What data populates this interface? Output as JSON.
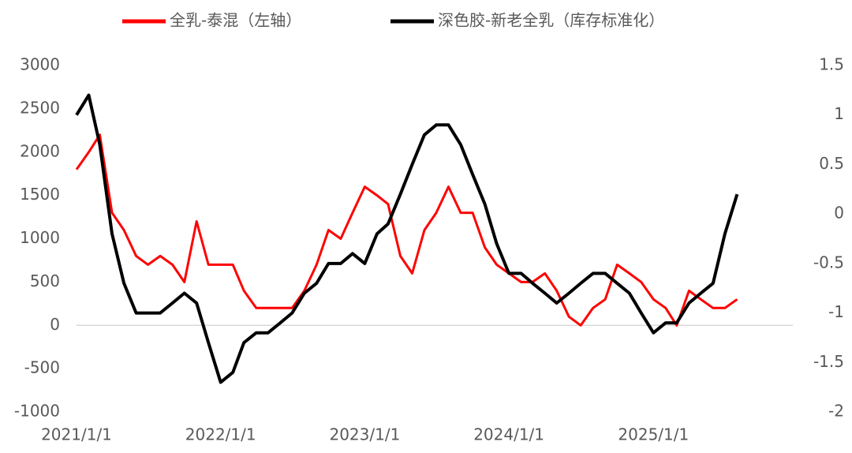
{
  "chart_data": {
    "type": "line",
    "x": [
      "2021/1/1",
      "2021/2/1",
      "2021/3/1",
      "2021/4/1",
      "2021/5/1",
      "2021/6/1",
      "2021/7/1",
      "2021/8/1",
      "2021/9/1",
      "2021/10/1",
      "2021/11/1",
      "2021/12/1",
      "2022/1/1",
      "2022/2/1",
      "2022/3/1",
      "2022/4/1",
      "2022/5/1",
      "2022/6/1",
      "2022/7/1",
      "2022/8/1",
      "2022/9/1",
      "2022/10/1",
      "2022/11/1",
      "2022/12/1",
      "2023/1/1",
      "2023/2/1",
      "2023/3/1",
      "2023/4/1",
      "2023/5/1",
      "2023/6/1",
      "2023/7/1",
      "2023/8/1",
      "2023/9/1",
      "2023/10/1",
      "2023/11/1",
      "2023/12/1",
      "2024/1/1",
      "2024/2/1",
      "2024/3/1",
      "2024/4/1",
      "2024/5/1",
      "2024/6/1",
      "2024/7/1",
      "2024/8/1",
      "2024/9/1",
      "2024/10/1",
      "2024/11/1",
      "2024/12/1",
      "2025/1/1",
      "2025/2/1",
      "2025/3/1",
      "2025/4/1",
      "2025/5/1",
      "2025/6/1",
      "2025/7/1",
      "2025/8/1"
    ],
    "series": [
      {
        "name": "全乳-泰混（左轴）",
        "color": "#ff0000",
        "axis": "y",
        "values": [
          1800,
          2000,
          2200,
          1300,
          1100,
          800,
          700,
          800,
          700,
          500,
          1200,
          700,
          700,
          700,
          400,
          200,
          200,
          200,
          200,
          400,
          700,
          1100,
          1000,
          1300,
          1600,
          1500,
          1400,
          800,
          600,
          1100,
          1300,
          1600,
          1300,
          1300,
          900,
          700,
          600,
          500,
          500,
          600,
          400,
          100,
          0,
          200,
          300,
          700,
          600,
          500,
          300,
          200,
          0,
          400,
          300,
          200,
          200,
          300
        ]
      },
      {
        "name": "深色胶-新老全乳（库存标准化）",
        "color": "#000000",
        "axis": "y2",
        "values": [
          1.0,
          1.2,
          0.7,
          -0.2,
          -0.7,
          -1.0,
          -1.0,
          -1.0,
          -0.9,
          -0.8,
          -0.9,
          -1.3,
          -1.7,
          -1.6,
          -1.3,
          -1.2,
          -1.2,
          -1.1,
          -1.0,
          -0.8,
          -0.7,
          -0.5,
          -0.5,
          -0.4,
          -0.5,
          -0.2,
          -0.1,
          0.2,
          0.5,
          0.8,
          0.9,
          0.9,
          0.7,
          0.4,
          0.1,
          -0.3,
          -0.6,
          -0.6,
          -0.7,
          -0.8,
          -0.9,
          -0.8,
          -0.7,
          -0.6,
          -0.6,
          -0.7,
          -0.8,
          -1.0,
          -1.2,
          -1.1,
          -1.1,
          -0.9,
          -0.8,
          -0.7,
          -0.2,
          0.2
        ]
      }
    ],
    "xlim": [
      "2021/1/1",
      "2025/12/20"
    ],
    "xticks": [
      "2021/1/1",
      "2022/1/1",
      "2023/1/1",
      "2024/1/1",
      "2025/1/1"
    ],
    "ylim": [
      -1000,
      3000
    ],
    "yticks": [
      -1000,
      -500,
      0,
      500,
      1000,
      1500,
      2000,
      2500,
      3000
    ],
    "y2lim": [
      -2,
      1.5
    ],
    "y2ticks": [
      -2,
      -1.5,
      -1,
      -0.5,
      0,
      0.5,
      1,
      1.5
    ],
    "legend": "top"
  }
}
